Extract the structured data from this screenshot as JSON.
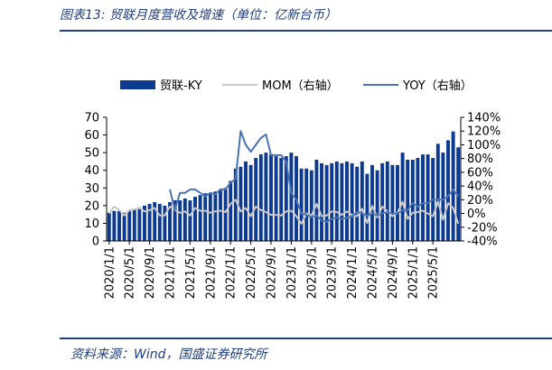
{
  "header": {
    "title": "图表13: 贸联月度营收及增速（单位：亿新台币）"
  },
  "footer": {
    "source": "资料来源：Wind，国盛证券研究所"
  },
  "colors": {
    "bar": "#0d3a91",
    "mom": "#c8c8c8",
    "yoy": "#4a74b3",
    "rule": "#1f3f7f"
  },
  "chart_data": {
    "type": "bar",
    "legend_position": "top",
    "grid": false,
    "y_left": {
      "ylim": [
        0,
        70
      ],
      "ticks": [
        "0",
        "10",
        "20",
        "30",
        "40",
        "50",
        "60",
        "70"
      ]
    },
    "y_right": {
      "ylim": [
        -40,
        140
      ],
      "ticks": [
        "-40%",
        "-20%",
        "0%",
        "20%",
        "40%",
        "60%",
        "80%",
        "100%",
        "120%",
        "140%"
      ]
    },
    "x_tick_labels": [
      "2020/1/1",
      "2020/5/1",
      "2020/9/1",
      "2021/1/1",
      "2021/5/1",
      "2021/9/1",
      "2022/1/1",
      "2022/5/1",
      "2022/9/1",
      "2023/1/1",
      "2023/5/1",
      "2023/9/1",
      "2024/1/1",
      "2024/5/1",
      "2024/9/1",
      "2025/1/1",
      "2025/5/1"
    ],
    "series": [
      {
        "name": "贸联-KY",
        "type": "bar",
        "axis": "left",
        "values": [
          16,
          17,
          17,
          16,
          17,
          18,
          19,
          20,
          21,
          22,
          21,
          20,
          22,
          23,
          23,
          24,
          23,
          25,
          26,
          27,
          27,
          28,
          29,
          30,
          34,
          41,
          42,
          45,
          43,
          47,
          49,
          50,
          49,
          48,
          47,
          48,
          50,
          48,
          41,
          41,
          40,
          46,
          44,
          43,
          44,
          45,
          44,
          45,
          44,
          42,
          45,
          38,
          43,
          40,
          44,
          45,
          43,
          43,
          50,
          46,
          46,
          47,
          49,
          49,
          47,
          55,
          50,
          57,
          62,
          53
        ]
      },
      {
        "name": "MOM（右轴）",
        "type": "line",
        "axis": "right",
        "values": [
          0,
          10,
          5,
          -3,
          5,
          6,
          8,
          3,
          5,
          8,
          -3,
          -3,
          10,
          5,
          1,
          3,
          -3,
          8,
          4,
          4,
          1,
          3,
          4,
          2,
          14,
          20,
          3,
          8,
          -4,
          10,
          5,
          2,
          -2,
          -2,
          -3,
          3,
          4,
          -4,
          -15,
          0,
          -3,
          14,
          -4,
          -3,
          3,
          2,
          -2,
          3,
          -2,
          -4,
          7,
          -14,
          11,
          -6,
          10,
          3,
          -4,
          1,
          17,
          -8,
          1,
          2,
          4,
          0,
          -4,
          17,
          -9,
          15,
          8,
          -15
        ]
      },
      {
        "name": "YOY（右轴）",
        "type": "line",
        "axis": "right",
        "values": [
          null,
          null,
          null,
          null,
          null,
          null,
          null,
          null,
          null,
          null,
          null,
          null,
          35,
          5,
          30,
          30,
          35,
          35,
          30,
          25,
          30,
          28,
          35,
          35,
          45,
          50,
          120,
          100,
          90,
          100,
          110,
          115,
          85,
          85,
          85,
          75,
          30,
          20,
          0,
          -2,
          -5,
          -3,
          -10,
          -12,
          -8,
          -6,
          -8,
          -6,
          -5,
          2,
          0,
          -3,
          0,
          -3,
          0,
          2,
          0,
          0,
          5,
          5,
          15,
          10,
          15,
          15,
          20,
          20,
          20,
          25,
          35,
          25
        ]
      }
    ]
  }
}
